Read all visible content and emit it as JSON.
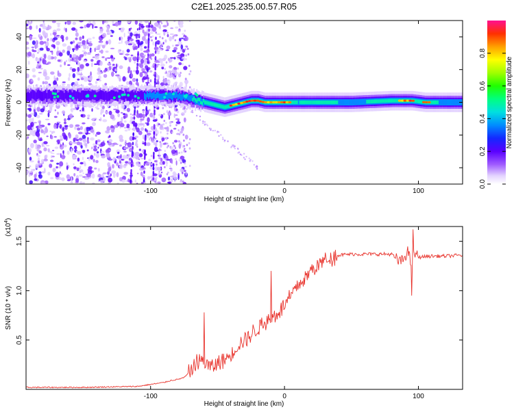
{
  "figure": {
    "title": "C2E1.2025.235.00.57.R05"
  },
  "chart_data": [
    {
      "type": "heatmap",
      "xlabel": "Height of straight line (km)",
      "ylabel": "Frequency (Hz)",
      "xlim": [
        -193,
        133
      ],
      "ylim": [
        -50,
        50
      ],
      "xticks": [
        -100,
        0,
        100
      ],
      "yticks": [
        -40,
        -20,
        0,
        20,
        40
      ],
      "colorbar": {
        "label": "Normalized spectral amplitude",
        "range": [
          0,
          1
        ],
        "ticks": [
          "0.0",
          "0.2",
          "0.4",
          "0.6",
          "0.8"
        ]
      },
      "ridge_frequency_profile": {
        "x": [
          -193,
          -120,
          -100,
          -80,
          -70,
          -60,
          -55,
          -50,
          -45,
          -40,
          -35,
          -30,
          -25,
          -20,
          -15,
          -10,
          -5,
          0,
          10,
          50,
          80,
          95,
          105,
          133
        ],
        "freq_hz": [
          4,
          4,
          4,
          4,
          2,
          0,
          -1,
          -2,
          -3,
          -2,
          -1,
          0,
          1,
          1,
          0,
          0,
          0,
          0,
          0,
          0,
          1,
          1,
          0,
          0
        ]
      },
      "ridge_amplitude_profile": {
        "x": [
          -193,
          -120,
          -100,
          -80,
          -70,
          -60,
          -50,
          -40,
          -30,
          -20,
          -10,
          0,
          10,
          20,
          40,
          60,
          80,
          90,
          95,
          100,
          105,
          115,
          133
        ],
        "amplitude": [
          0.3,
          0.32,
          0.45,
          0.5,
          0.55,
          0.6,
          0.7,
          0.75,
          0.8,
          0.85,
          0.9,
          0.9,
          0.55,
          0.6,
          0.55,
          0.55,
          0.6,
          0.95,
          0.9,
          0.6,
          0.9,
          0.55,
          0.55
        ]
      }
    },
    {
      "type": "line",
      "xlabel": "Height of straight line (km)",
      "ylabel": "SNR (10 * v/v)",
      "yscale_label": "(x10",
      "yscale_exponent": "4",
      "yscale_suffix": ")",
      "xlim": [
        -193,
        133
      ],
      "ylim": [
        0,
        1.65
      ],
      "xticks": [
        -100,
        0,
        100
      ],
      "yticks": [
        0.5,
        1.0,
        1.5
      ],
      "yticklabels": [
        "0.5",
        "1.0",
        "1.5"
      ],
      "color": "#e8312a",
      "series": [
        {
          "name": "SNR",
          "x": [
            -193,
            -150,
            -110,
            -100,
            -90,
            -85,
            -80,
            -75,
            -70,
            -65,
            -60,
            -55,
            -50,
            -45,
            -40,
            -35,
            -30,
            -25,
            -20,
            -15,
            -10,
            -5,
            0,
            5,
            10,
            15,
            20,
            25,
            30,
            35,
            40,
            50,
            60,
            70,
            80,
            85,
            88,
            92,
            95,
            97,
            100,
            110,
            120,
            133
          ],
          "y": [
            0.02,
            0.02,
            0.03,
            0.05,
            0.07,
            0.09,
            0.1,
            0.12,
            0.18,
            0.3,
            0.28,
            0.22,
            0.26,
            0.3,
            0.35,
            0.45,
            0.5,
            0.55,
            0.62,
            0.68,
            0.72,
            0.78,
            0.85,
            0.95,
            1.05,
            1.12,
            1.2,
            1.26,
            1.31,
            1.34,
            1.36,
            1.37,
            1.37,
            1.37,
            1.37,
            1.3,
            1.3,
            1.4,
            1.25,
            1.38,
            1.34,
            1.35,
            1.35,
            1.36
          ]
        }
      ]
    }
  ]
}
